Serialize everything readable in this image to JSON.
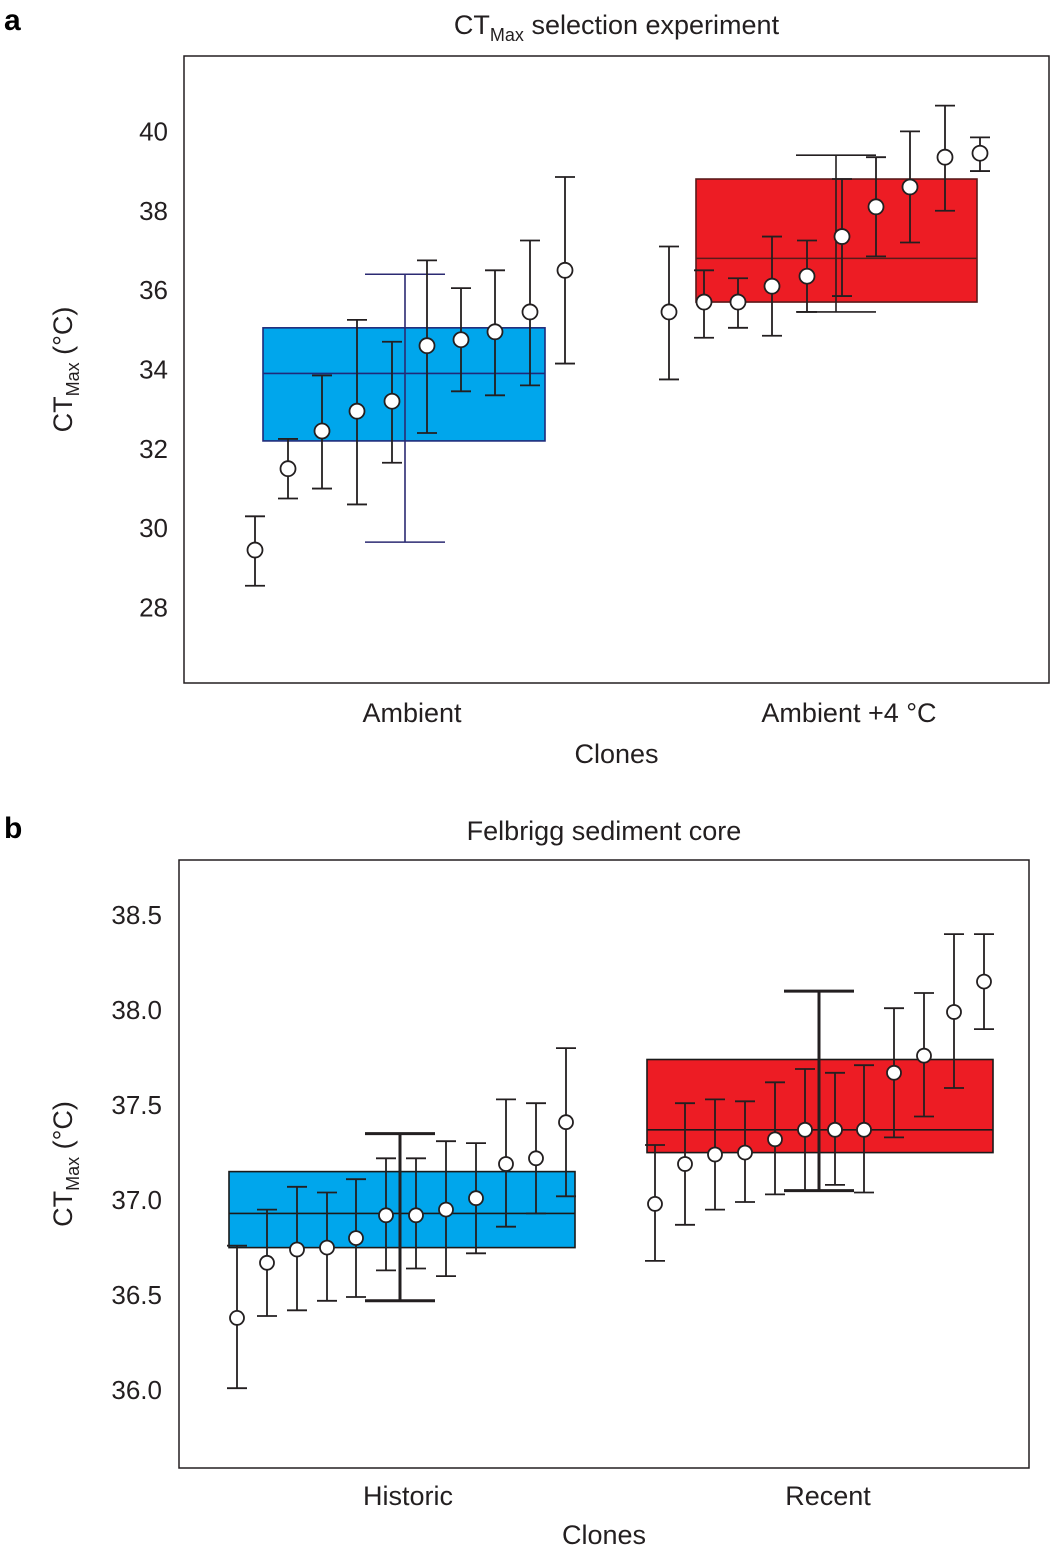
{
  "figure": {
    "colors": {
      "ambient_box": "#00a6ec",
      "warm_box": "#ed1c24",
      "box_edge_blue": "#1c3d8f",
      "box_edge_red": "#8b1a1a",
      "whisker": "#231f20",
      "axis": "#231f20"
    }
  },
  "chart_data": [
    {
      "panel": "a",
      "type": "scatter",
      "title": {
        "main": "CT",
        "sub": "Max",
        "rest": " selection experiment"
      },
      "ylabel": {
        "main": "CT",
        "sub": "Max",
        "rest": " (°C)"
      },
      "xlabel": "Clones",
      "ylim": [
        26.1,
        41.9
      ],
      "yticks": [
        "28",
        "30",
        "32",
        "34",
        "36",
        "38",
        "40"
      ],
      "ytick_values": [
        28,
        30,
        32,
        34,
        36,
        38,
        40
      ],
      "categories": [
        "Ambient",
        "Ambient +4 °C"
      ],
      "boxes": [
        {
          "category": "Ambient",
          "color": "ambient_box",
          "q1": 32.2,
          "median": 33.9,
          "q3": 35.05,
          "whisker_low": 29.65,
          "whisker_high": 36.4
        },
        {
          "category": "Ambient +4 °C",
          "color": "warm_box",
          "q1": 35.7,
          "median": 36.8,
          "q3": 38.8,
          "whisker_low": 35.45,
          "whisker_high": 39.4
        }
      ],
      "series": [
        {
          "category": "Ambient",
          "points": [
            {
              "y": 29.45,
              "low": 28.55,
              "high": 30.3
            },
            {
              "y": 31.5,
              "low": 30.75,
              "high": 32.25
            },
            {
              "y": 32.45,
              "low": 31.0,
              "high": 33.85
            },
            {
              "y": 32.95,
              "low": 30.6,
              "high": 35.25
            },
            {
              "y": 33.2,
              "low": 31.65,
              "high": 34.7
            },
            {
              "y": 34.6,
              "low": 32.4,
              "high": 36.75
            },
            {
              "y": 34.75,
              "low": 33.45,
              "high": 36.05
            },
            {
              "y": 34.95,
              "low": 33.35,
              "high": 36.5
            },
            {
              "y": 35.45,
              "low": 33.6,
              "high": 37.25
            },
            {
              "y": 36.5,
              "low": 34.15,
              "high": 38.85
            }
          ]
        },
        {
          "category": "Ambient +4 °C",
          "points": [
            {
              "y": 35.45,
              "low": 33.75,
              "high": 37.1
            },
            {
              "y": 35.7,
              "low": 34.8,
              "high": 36.5
            },
            {
              "y": 35.7,
              "low": 35.05,
              "high": 36.3
            },
            {
              "y": 36.1,
              "low": 34.85,
              "high": 37.35
            },
            {
              "y": 36.35,
              "low": 35.45,
              "high": 37.25
            },
            {
              "y": 37.35,
              "low": 35.85,
              "high": 38.8
            },
            {
              "y": 38.1,
              "low": 36.85,
              "high": 39.35
            },
            {
              "y": 38.6,
              "low": 37.2,
              "high": 40.0
            },
            {
              "y": 39.35,
              "low": 38.0,
              "high": 40.65
            },
            {
              "y": 39.45,
              "low": 39.0,
              "high": 39.85
            }
          ]
        }
      ]
    },
    {
      "panel": "b",
      "type": "scatter",
      "title": {
        "main": "Felbrigg sediment core",
        "sub": "",
        "rest": ""
      },
      "ylabel": {
        "main": "CT",
        "sub": "Max",
        "rest": " (°C)"
      },
      "xlabel": "Clones",
      "ylim": [
        35.59,
        38.79
      ],
      "yticks": [
        "36.0",
        "36.5",
        "37.0",
        "37.5",
        "38.0",
        "38.5"
      ],
      "ytick_values": [
        36.0,
        36.5,
        37.0,
        37.5,
        38.0,
        38.5
      ],
      "categories": [
        "Historic",
        "Recent"
      ],
      "boxes": [
        {
          "category": "Historic",
          "color": "ambient_box",
          "q1": 36.75,
          "median": 36.93,
          "q3": 37.15,
          "whisker_low": 36.47,
          "whisker_high": 37.35
        },
        {
          "category": "Recent",
          "color": "warm_box",
          "q1": 37.25,
          "median": 37.37,
          "q3": 37.74,
          "whisker_low": 37.05,
          "whisker_high": 38.1
        }
      ],
      "series": [
        {
          "category": "Historic",
          "points": [
            {
              "y": 36.38,
              "low": 36.01,
              "high": 36.76
            },
            {
              "y": 36.67,
              "low": 36.39,
              "high": 36.95
            },
            {
              "y": 36.74,
              "low": 36.42,
              "high": 37.07
            },
            {
              "y": 36.75,
              "low": 36.47,
              "high": 37.04
            },
            {
              "y": 36.8,
              "low": 36.49,
              "high": 37.11
            },
            {
              "y": 36.92,
              "low": 36.63,
              "high": 37.22
            },
            {
              "y": 36.92,
              "low": 36.64,
              "high": 37.22
            },
            {
              "y": 36.95,
              "low": 36.6,
              "high": 37.31
            },
            {
              "y": 37.01,
              "low": 36.72,
              "high": 37.3
            },
            {
              "y": 37.19,
              "low": 36.86,
              "high": 37.53
            },
            {
              "y": 37.22,
              "low": 36.93,
              "high": 37.51
            },
            {
              "y": 37.41,
              "low": 37.02,
              "high": 37.8
            }
          ]
        },
        {
          "category": "Recent",
          "points": [
            {
              "y": 36.98,
              "low": 36.68,
              "high": 37.29
            },
            {
              "y": 37.19,
              "low": 36.87,
              "high": 37.51
            },
            {
              "y": 37.24,
              "low": 36.95,
              "high": 37.53
            },
            {
              "y": 37.25,
              "low": 36.99,
              "high": 37.52
            },
            {
              "y": 37.32,
              "low": 37.03,
              "high": 37.62
            },
            {
              "y": 37.37,
              "low": 37.05,
              "high": 37.69
            },
            {
              "y": 37.37,
              "low": 37.08,
              "high": 37.67
            },
            {
              "y": 37.37,
              "low": 37.04,
              "high": 37.71
            },
            {
              "y": 37.67,
              "low": 37.33,
              "high": 38.01
            },
            {
              "y": 37.76,
              "low": 37.44,
              "high": 38.09
            },
            {
              "y": 37.99,
              "low": 37.59,
              "high": 38.4
            },
            {
              "y": 38.15,
              "low": 37.9,
              "high": 38.4
            }
          ]
        }
      ]
    }
  ]
}
